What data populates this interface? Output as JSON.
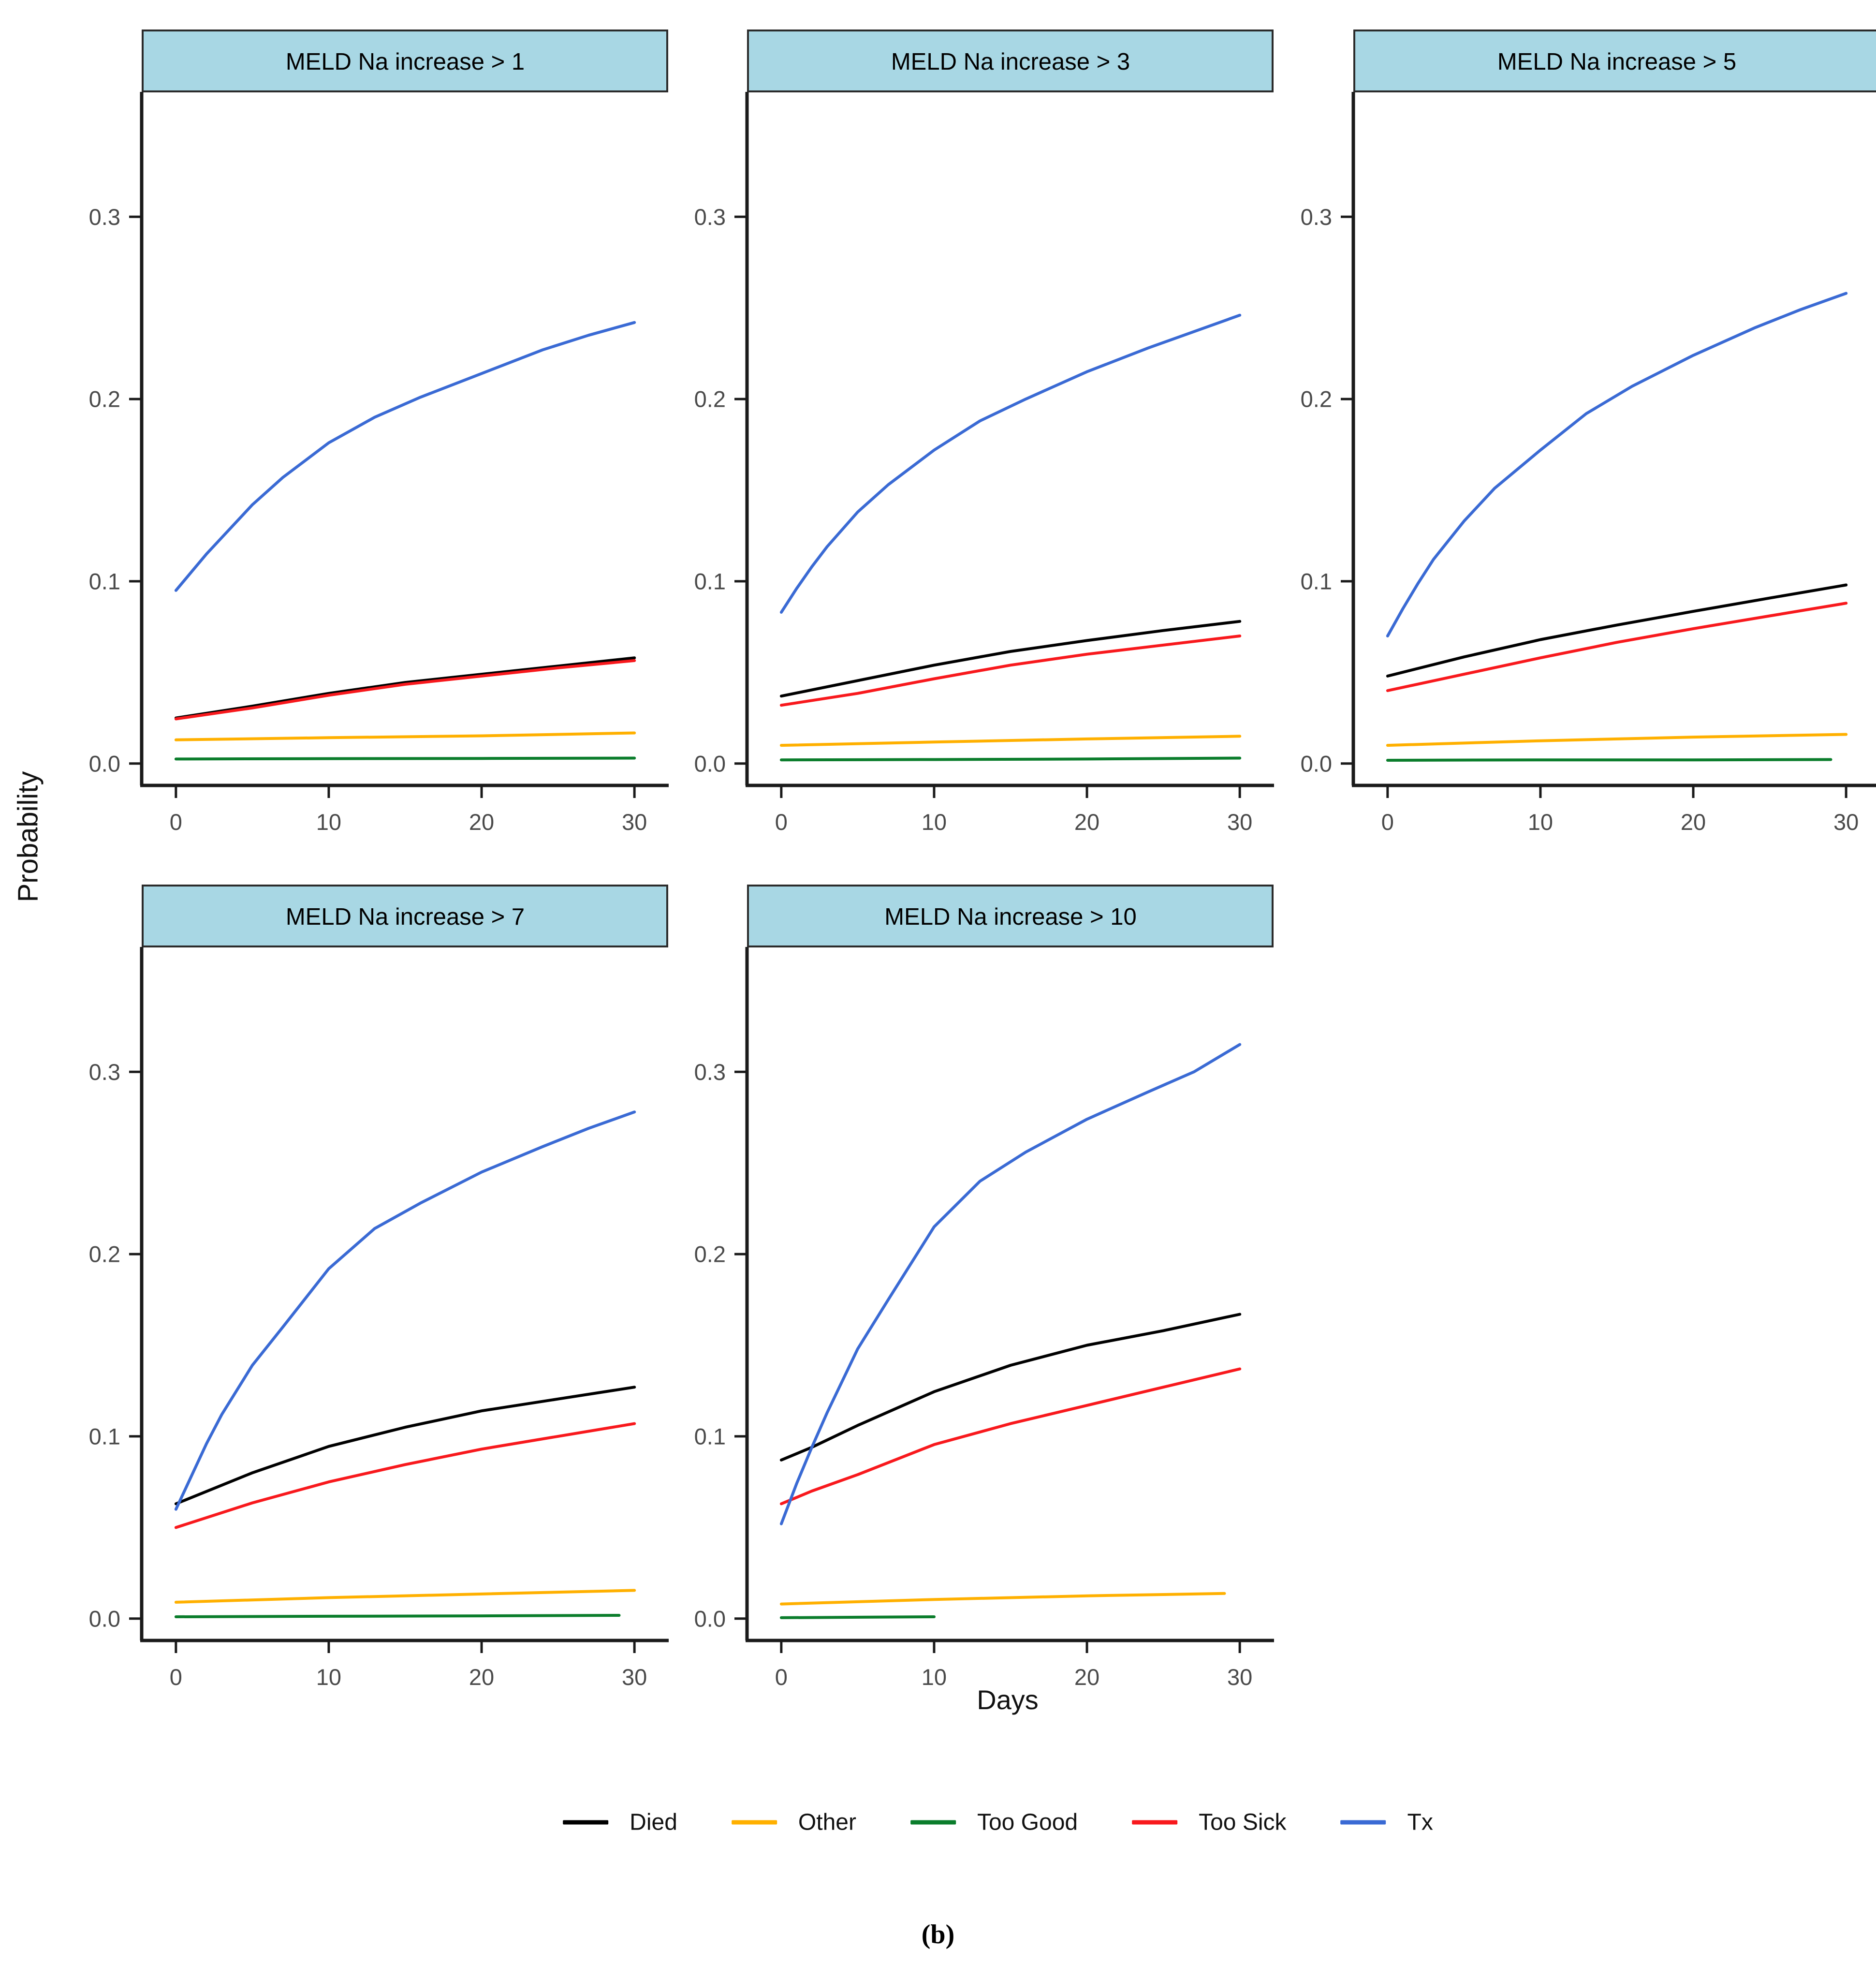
{
  "page": {
    "background": "#ffffff"
  },
  "axis": {
    "x_label": "Days",
    "y_label": "Probability",
    "x_ticks": [
      "0",
      "10",
      "20",
      "30"
    ],
    "y_ticks": [
      "0.0",
      "0.1",
      "0.2",
      "0.3"
    ]
  },
  "caption": "(b)",
  "legend": {
    "items": [
      {
        "label": "Died",
        "color": "#000000"
      },
      {
        "label": "Other",
        "color": "#FFB000"
      },
      {
        "label": "Too Good",
        "color": "#0B7D2C"
      },
      {
        "label": "Too Sick",
        "color": "#F8191D"
      },
      {
        "label": "Tx",
        "color": "#3A6AD4"
      }
    ]
  },
  "facet_style": {
    "strip_fill": "#A8D7E4",
    "strip_border": "#2B2B2B",
    "axis_color": "#1A1A1A",
    "tick_label_color": "#4A4A4A",
    "strip_text_color": "#000000"
  },
  "chart_data": [
    {
      "type": "line",
      "title": "MELD Na increase > 1",
      "xlabel": "Days",
      "ylabel": "Probability",
      "xlim": [
        0,
        30
      ],
      "ylim": [
        -0.012,
        0.368
      ],
      "x_ticks": [
        0,
        10,
        20,
        30
      ],
      "y_ticks": [
        0,
        0.1,
        0.2,
        0.3
      ],
      "grid": false,
      "legend_position": "bottom",
      "series": [
        {
          "name": "Died",
          "x": [
            0,
            5,
            10,
            15,
            20,
            25,
            30
          ],
          "y": [
            0.025,
            0.0315,
            0.0385,
            0.0445,
            0.049,
            0.0535,
            0.058
          ]
        },
        {
          "name": "Other",
          "x": [
            0,
            10,
            20,
            30
          ],
          "y": [
            0.013,
            0.0142,
            0.0152,
            0.0168
          ]
        },
        {
          "name": "Too Good",
          "x": [
            0,
            10,
            20,
            30
          ],
          "y": [
            0.0025,
            0.0027,
            0.0028,
            0.003
          ]
        },
        {
          "name": "Too Sick",
          "x": [
            0,
            5,
            10,
            15,
            20,
            25,
            30
          ],
          "y": [
            0.0245,
            0.0305,
            0.0375,
            0.0435,
            0.048,
            0.0525,
            0.0565
          ]
        },
        {
          "name": "Tx",
          "x": [
            0,
            1,
            2,
            3,
            5,
            7,
            10,
            13,
            16,
            20,
            24,
            27,
            30
          ],
          "y": [
            0.095,
            0.105,
            0.115,
            0.124,
            0.142,
            0.157,
            0.176,
            0.19,
            0.201,
            0.214,
            0.227,
            0.235,
            0.242
          ]
        }
      ]
    },
    {
      "type": "line",
      "title": "MELD Na increase > 3",
      "xlabel": "Days",
      "ylabel": "Probability",
      "xlim": [
        0,
        30
      ],
      "ylim": [
        -0.012,
        0.368
      ],
      "x_ticks": [
        0,
        10,
        20,
        30
      ],
      "y_ticks": [
        0,
        0.1,
        0.2,
        0.3
      ],
      "grid": false,
      "legend_position": "bottom",
      "series": [
        {
          "name": "Died",
          "x": [
            0,
            5,
            10,
            15,
            20,
            25,
            30
          ],
          "y": [
            0.037,
            0.0455,
            0.054,
            0.0615,
            0.0675,
            0.073,
            0.078
          ]
        },
        {
          "name": "Other",
          "x": [
            0,
            10,
            20,
            30
          ],
          "y": [
            0.01,
            0.0118,
            0.0135,
            0.015
          ]
        },
        {
          "name": "Too Good",
          "x": [
            0,
            10,
            20,
            30
          ],
          "y": [
            0.002,
            0.0022,
            0.0025,
            0.003
          ]
        },
        {
          "name": "Too Sick",
          "x": [
            0,
            5,
            10,
            15,
            20,
            25,
            30
          ],
          "y": [
            0.032,
            0.0385,
            0.0465,
            0.054,
            0.06,
            0.065,
            0.07
          ]
        },
        {
          "name": "Tx",
          "x": [
            0,
            1,
            2,
            3,
            5,
            7,
            10,
            13,
            16,
            20,
            24,
            27,
            30
          ],
          "y": [
            0.083,
            0.096,
            0.108,
            0.119,
            0.138,
            0.153,
            0.172,
            0.188,
            0.2,
            0.215,
            0.228,
            0.237,
            0.246
          ]
        }
      ]
    },
    {
      "type": "line",
      "title": "MELD Na increase > 5",
      "xlabel": "Days",
      "ylabel": "Probability",
      "xlim": [
        0,
        30
      ],
      "ylim": [
        -0.012,
        0.368
      ],
      "x_ticks": [
        0,
        10,
        20,
        30
      ],
      "y_ticks": [
        0,
        0.1,
        0.2,
        0.3
      ],
      "grid": false,
      "legend_position": "bottom",
      "series": [
        {
          "name": "Died",
          "x": [
            0,
            5,
            10,
            15,
            20,
            25,
            30
          ],
          "y": [
            0.048,
            0.0585,
            0.068,
            0.076,
            0.0835,
            0.0908,
            0.098
          ]
        },
        {
          "name": "Other",
          "x": [
            0,
            10,
            20,
            30
          ],
          "y": [
            0.01,
            0.0125,
            0.0145,
            0.016
          ]
        },
        {
          "name": "Too Good",
          "x": [
            0,
            10,
            20,
            29
          ],
          "y": [
            0.0018,
            0.002,
            0.002,
            0.0022
          ]
        },
        {
          "name": "Too Sick",
          "x": [
            0,
            5,
            10,
            15,
            20,
            25,
            30
          ],
          "y": [
            0.04,
            0.049,
            0.058,
            0.0665,
            0.074,
            0.081,
            0.088
          ]
        },
        {
          "name": "Tx",
          "x": [
            0,
            1,
            2,
            3,
            5,
            7,
            10,
            13,
            16,
            20,
            24,
            27,
            30
          ],
          "y": [
            0.07,
            0.085,
            0.099,
            0.112,
            0.133,
            0.151,
            0.172,
            0.192,
            0.207,
            0.224,
            0.239,
            0.249,
            0.258
          ]
        }
      ]
    },
    {
      "type": "line",
      "title": "MELD Na increase > 7",
      "xlabel": "Days",
      "ylabel": "Probability",
      "xlim": [
        0,
        30
      ],
      "ylim": [
        -0.012,
        0.368
      ],
      "x_ticks": [
        0,
        10,
        20,
        30
      ],
      "y_ticks": [
        0,
        0.1,
        0.2,
        0.3
      ],
      "grid": false,
      "legend_position": "bottom",
      "series": [
        {
          "name": "Died",
          "x": [
            0,
            5,
            10,
            15,
            20,
            25,
            30
          ],
          "y": [
            0.063,
            0.08,
            0.0945,
            0.105,
            0.114,
            0.1205,
            0.127
          ]
        },
        {
          "name": "Other",
          "x": [
            0,
            10,
            20,
            30
          ],
          "y": [
            0.009,
            0.0115,
            0.0135,
            0.0155
          ]
        },
        {
          "name": "Too Good",
          "x": [
            0,
            10,
            20,
            29
          ],
          "y": [
            0.001,
            0.0013,
            0.0015,
            0.0018
          ]
        },
        {
          "name": "Too Sick",
          "x": [
            0,
            5,
            10,
            15,
            20,
            25,
            30
          ],
          "y": [
            0.05,
            0.0635,
            0.075,
            0.0845,
            0.093,
            0.1,
            0.107
          ]
        },
        {
          "name": "Tx",
          "x": [
            0,
            1,
            2,
            3,
            5,
            7,
            10,
            13,
            16,
            20,
            24,
            27,
            30
          ],
          "y": [
            0.06,
            0.078,
            0.096,
            0.112,
            0.139,
            0.16,
            0.192,
            0.214,
            0.228,
            0.245,
            0.259,
            0.269,
            0.278
          ]
        }
      ]
    },
    {
      "type": "line",
      "title": "MELD Na increase > 10",
      "xlabel": "Days",
      "ylabel": "Probability",
      "xlim": [
        0,
        30
      ],
      "ylim": [
        -0.012,
        0.368
      ],
      "x_ticks": [
        0,
        10,
        20,
        30
      ],
      "y_ticks": [
        0,
        0.1,
        0.2,
        0.3
      ],
      "grid": false,
      "legend_position": "bottom",
      "series": [
        {
          "name": "Died",
          "x": [
            0,
            2,
            5,
            10,
            15,
            20,
            25,
            30
          ],
          "y": [
            0.087,
            0.094,
            0.106,
            0.1245,
            0.139,
            0.15,
            0.158,
            0.167
          ]
        },
        {
          "name": "Other",
          "x": [
            0,
            10,
            20,
            29
          ],
          "y": [
            0.008,
            0.0105,
            0.0125,
            0.0138
          ]
        },
        {
          "name": "Too Good",
          "x": [
            0,
            10
          ],
          "y": [
            0.0005,
            0.001
          ]
        },
        {
          "name": "Too Sick",
          "x": [
            0,
            2,
            5,
            10,
            15,
            20,
            25,
            30
          ],
          "y": [
            0.063,
            0.07,
            0.079,
            0.0955,
            0.107,
            0.117,
            0.127,
            0.137
          ]
        },
        {
          "name": "Tx",
          "x": [
            0,
            1,
            2,
            3,
            5,
            7,
            10,
            13,
            16,
            20,
            24,
            27,
            30
          ],
          "y": [
            0.052,
            0.074,
            0.094,
            0.113,
            0.148,
            0.175,
            0.215,
            0.24,
            0.256,
            0.274,
            0.289,
            0.3,
            0.315
          ]
        }
      ]
    }
  ]
}
